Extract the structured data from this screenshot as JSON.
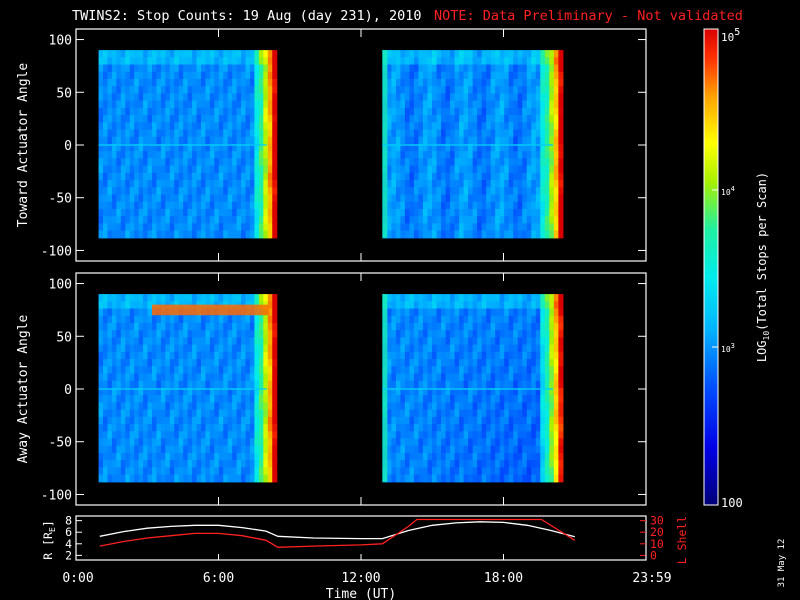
{
  "header": {
    "title": "TWINS2: Stop Counts: 19 Aug (day 231), 2010",
    "note": "NOTE: Data Preliminary - Not validated"
  },
  "colors": {
    "note": "#ff2020",
    "axes": "#ffffff",
    "lshell": "#ff2020",
    "r": "#ffffff",
    "background": "#000000"
  },
  "stamp": "31 May 12",
  "chart_data": [
    {
      "type": "heatmap",
      "ylabel": "Toward Actuator Angle",
      "ylim": [
        -110,
        110
      ],
      "yticks": [
        "100",
        "50",
        "0",
        "-50",
        "-100"
      ],
      "xlim": [
        0,
        24
      ],
      "data_segments_hours": [
        [
          0.95,
          8.45
        ],
        [
          12.9,
          20.5
        ]
      ],
      "angle_range": [
        -88,
        90
      ]
    },
    {
      "type": "heatmap",
      "ylabel": "Away Actuator Angle",
      "ylim": [
        -110,
        110
      ],
      "yticks": [
        "100",
        "50",
        "0",
        "-50",
        "-100"
      ],
      "xlim": [
        0,
        24
      ],
      "data_segments_hours": [
        [
          0.95,
          8.45
        ],
        [
          12.9,
          20.5
        ]
      ],
      "angle_range": [
        -88,
        90
      ]
    },
    {
      "type": "line",
      "xlabel": "Time (UT)",
      "xticks": [
        "0:00",
        "6:00",
        "12:00",
        "18:00",
        "23:59"
      ],
      "ylabel_left": "R [R",
      "ylabel_left_sub": "E",
      "ylabel_left_close": "]",
      "ylim_left": [
        2,
        8
      ],
      "yticks_left": [
        "8",
        "6",
        "4",
        "2"
      ],
      "ylabel_right": "L Shell",
      "ylim_right": [
        0,
        30
      ],
      "yticks_right": [
        "30",
        "20",
        "10",
        "0"
      ],
      "series": [
        {
          "axis": "left",
          "x": [
            1.0,
            2.0,
            3.0,
            4.0,
            5.0,
            6.0,
            7.0,
            8.0,
            8.5,
            10.0,
            12.0,
            12.9,
            14.0,
            15.0,
            16.0,
            17.0,
            18.0,
            19.0,
            20.0,
            21.0
          ],
          "y": [
            5.3,
            6.1,
            6.7,
            7.0,
            7.2,
            7.2,
            6.8,
            6.2,
            5.3,
            5.0,
            4.9,
            4.9,
            6.3,
            7.2,
            7.6,
            7.8,
            7.7,
            7.2,
            6.3,
            5.2
          ]
        },
        {
          "axis": "right",
          "x": [
            1.0,
            2.0,
            3.0,
            4.0,
            5.0,
            6.0,
            7.0,
            8.0,
            8.5,
            10.0,
            12.0,
            12.9,
            14.0,
            14.35,
            19.6,
            21.0
          ],
          "y": [
            8,
            12,
            15,
            17,
            19,
            19,
            17,
            13,
            7,
            8,
            9,
            10,
            25,
            31,
            31,
            13
          ]
        }
      ]
    },
    {
      "type": "heatmap",
      "ylabel": "LOG",
      "ylabel_sub": "10",
      "ylabel_rest": "(Total Stops per Scan)",
      "tick_labels": {
        "top_base": "10",
        "top_exp": "5",
        "mid_base": "10",
        "mid_exp": "4",
        "low_base": "10",
        "low_exp": "3",
        "bottom": "100"
      },
      "log_range": [
        2,
        5
      ]
    }
  ]
}
